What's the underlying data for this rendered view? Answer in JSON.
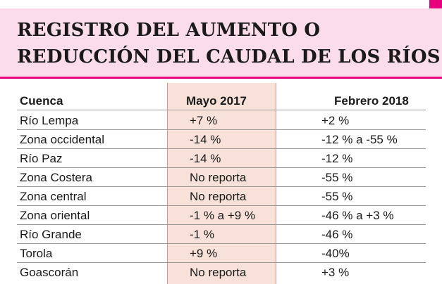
{
  "title": "REGISTRO DEL AUMENTO O\nREDUCCIÓN DEL CAUDAL DE LOS RÍOS",
  "colors": {
    "accent": "#e6007e",
    "header_bg": "#fadcea",
    "column_highlight": "#f7e1d8",
    "column_rule": "#e88b8b"
  },
  "table": {
    "headers": [
      "Cuenca",
      "Mayo 2017",
      "Febrero 2018"
    ],
    "rows": [
      [
        "Río Lempa",
        "+7 %",
        "+2 %"
      ],
      [
        "Zona occidental",
        "-14 %",
        "-12 % a -55 %"
      ],
      [
        "Río Paz",
        "-14 %",
        "-12 %"
      ],
      [
        "Zona Costera",
        "No reporta",
        "-55 %"
      ],
      [
        "Zona central",
        "No reporta",
        "-55 %"
      ],
      [
        "Zona oriental",
        "-1 % a +9 %",
        "-46 % a +3 %"
      ],
      [
        "Río Grande",
        "-1 %",
        "-46 %"
      ],
      [
        "Torola",
        "+9 %",
        "-40%"
      ],
      [
        "Goascorán",
        "No reporta",
        "+3 %"
      ]
    ]
  }
}
